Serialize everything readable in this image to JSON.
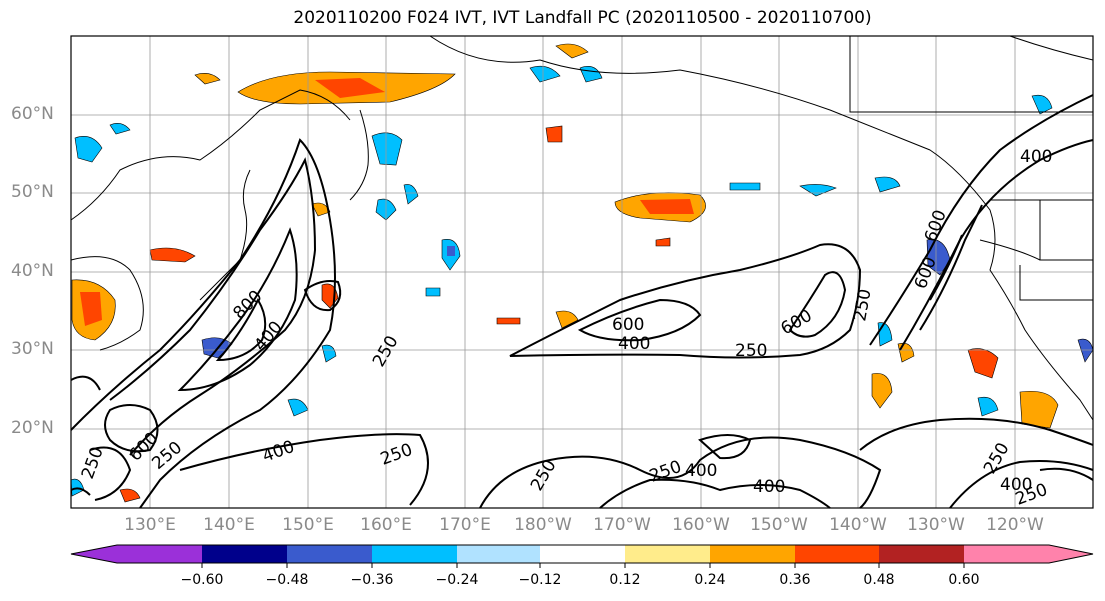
{
  "title": "2020110200 F024 IVT, IVT Landfall PC (2020110500 - 2020110700)",
  "lat_labels": [
    "60°N",
    "50°N",
    "40°N",
    "30°N",
    "20°N"
  ],
  "lon_labels": [
    "130°E",
    "140°E",
    "150°E",
    "160°E",
    "170°E",
    "180°W",
    "170°W",
    "160°W",
    "150°W",
    "140°W",
    "130°W",
    "120°W"
  ],
  "contour_labels": [
    "400",
    "600",
    "800",
    "400",
    "250",
    "250",
    "600",
    "400",
    "250",
    "600",
    "250",
    "600",
    "400",
    "250",
    "400",
    "250",
    "400",
    "250",
    "400",
    "250",
    "250",
    "600",
    "250"
  ],
  "colorbar": {
    "ticks": [
      "−0.60",
      "−0.48",
      "−0.36",
      "−0.24",
      "−0.12",
      "0.12",
      "0.24",
      "0.36",
      "0.48",
      "0.60"
    ],
    "colors": [
      "#9b30d9",
      "#00008b",
      "#3a5bcd",
      "#00bfff",
      "#b0e2ff",
      "#ffffff",
      "#ffec8b",
      "#ffa500",
      "#ff4500",
      "#b22222",
      "#ff82ab"
    ]
  }
}
